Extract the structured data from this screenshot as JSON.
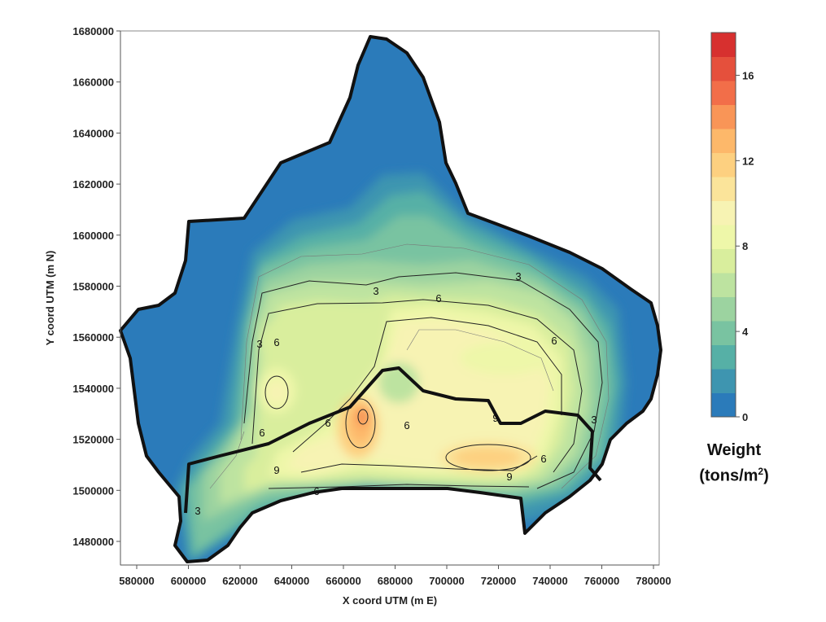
{
  "map": {
    "x_axis": {
      "title": "X coord UTM (m E)",
      "ticks": [
        "580000",
        "600000",
        "620000",
        "640000",
        "660000",
        "680000",
        "700000",
        "720000",
        "740000",
        "760000",
        "780000"
      ]
    },
    "y_axis": {
      "title": "Y coord UTM (m N)",
      "ticks": [
        "1480000",
        "1500000",
        "1520000",
        "1540000",
        "1560000",
        "1580000",
        "1600000",
        "1620000",
        "1640000",
        "1660000",
        "1680000"
      ]
    },
    "contour_labels": [
      "3",
      "3",
      "3",
      "3",
      "3",
      "6",
      "6",
      "6",
      "6",
      "6",
      "6",
      "6",
      "6",
      "9",
      "9",
      "9"
    ],
    "colorbar": {
      "tick_labels": [
        "0",
        "4",
        "8",
        "12",
        "16"
      ],
      "title_line1": "Weight",
      "title_line2_prefix": "(tons/m",
      "title_line2_sup": "2",
      "title_line2_suffix": ")",
      "colors": [
        "#2b7bba",
        "#3e95b0",
        "#56b0a6",
        "#79c3a1",
        "#9cd3a0",
        "#bde3a0",
        "#d9ee9d",
        "#eef7a9",
        "#f7f3b3",
        "#fbe49a",
        "#fdd080",
        "#fdb86a",
        "#f99557",
        "#f26e49",
        "#e5503c",
        "#d7302f"
      ]
    }
  }
}
